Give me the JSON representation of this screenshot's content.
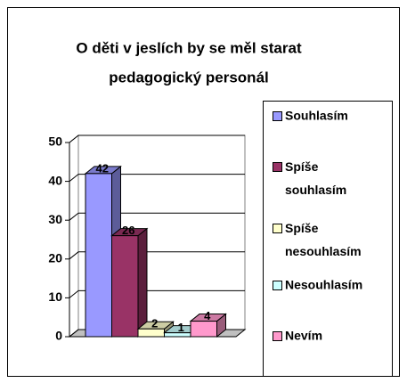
{
  "chart_data": {
    "type": "bar",
    "title_lines": [
      "O děti v jeslích by se měl starat",
      "pedagogický personál"
    ],
    "categories": [
      null
    ],
    "series": [
      {
        "name": "Souhlasím",
        "color": "#9999ff",
        "values": [
          42
        ]
      },
      {
        "name": "Spíše souhlasím",
        "color": "#993366",
        "values": [
          26
        ]
      },
      {
        "name": "Spíše nesouhlasím",
        "color": "#ffffcc",
        "values": [
          2
        ]
      },
      {
        "name": "Nesouhlasím",
        "color": "#ccffff",
        "values": [
          1
        ]
      },
      {
        "name": "Nevím",
        "color": "#ff99cc",
        "values": [
          4
        ]
      }
    ],
    "ylim": [
      0,
      50
    ],
    "yticks": [
      0,
      10,
      20,
      30,
      40,
      50
    ],
    "grid": true,
    "legend": "right",
    "data_labels": true
  }
}
